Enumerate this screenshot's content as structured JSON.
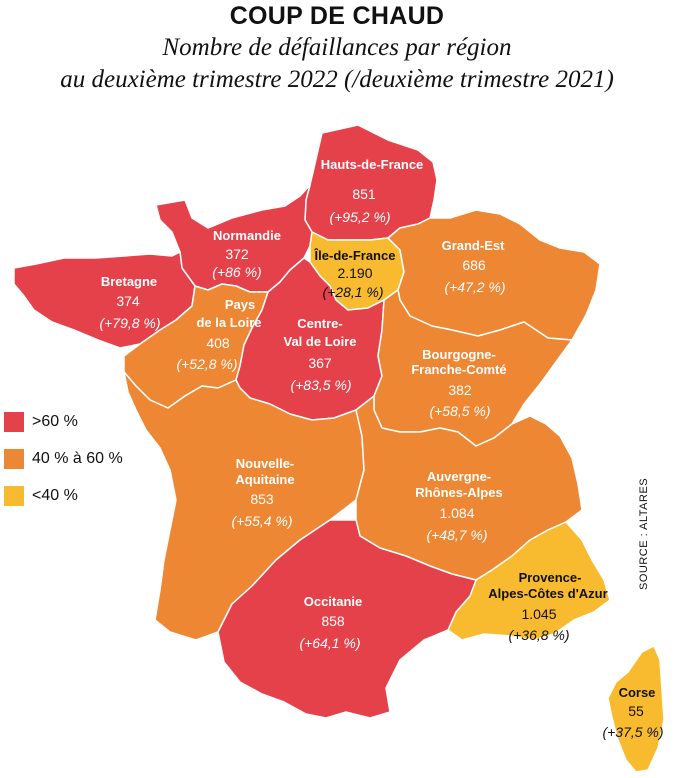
{
  "title": "COUP DE CHAUD",
  "subtitle_line1": "Nombre de défaillances par région",
  "subtitle_line2": "au deuxième trimestre 2022 (/deuxième trimestre 2021)",
  "colors": {
    "high": "#e5414b",
    "mid": "#ee8733",
    "low": "#f8bb2f",
    "border": "#ffffff"
  },
  "legend": [
    {
      "label": ">60 %",
      "color": "#e5414b"
    },
    {
      "label": "40 % à 60 %",
      "color": "#ee8733"
    },
    {
      "label": "<40 %",
      "color": "#f8bb2f"
    }
  ],
  "source": "SOURCE : ALTARES",
  "regions": {
    "hauts_de_france": {
      "name": "Hauts-de-France",
      "value": "851",
      "change": "(+95,2 %)"
    },
    "normandie": {
      "name": "Normandie",
      "value": "372",
      "change": "(+86 %)"
    },
    "ile_de_france": {
      "name": "Île-de-France",
      "value": "2.190",
      "change": "(+28,1 %)"
    },
    "grand_est": {
      "name": "Grand-Est",
      "value": "686",
      "change": "(+47,2 %)"
    },
    "bretagne": {
      "name": "Bretagne",
      "value": "374",
      "change": "(+79,8 %)"
    },
    "pays_de_la_loire": {
      "name_line1": "Pays",
      "name_line2": "de la Loire",
      "value": "408",
      "change": "(+52,8 %)"
    },
    "centre_val_de_loire": {
      "name_line1": "Centre-",
      "name_line2": "Val de Loire",
      "value": "367",
      "change": "(+83,5 %)"
    },
    "bourgogne_franche_comte": {
      "name_line1": "Bourgogne-",
      "name_line2": "Franche-Comté",
      "value": "382",
      "change": "(+58,5 %)"
    },
    "nouvelle_aquitaine": {
      "name_line1": "Nouvelle-",
      "name_line2": "Aquitaine",
      "value": "853",
      "change": "(+55,4 %)"
    },
    "auvergne_rhone_alpes": {
      "name_line1": "Auvergne-",
      "name_line2": "Rhônes-Alpes",
      "value": "1.084",
      "change": "(+48,7 %)"
    },
    "provence_alpes_cote_dazur": {
      "name_line1": "Provence-",
      "name_line2": "Alpes-Côtes d'Azur",
      "value": "1.045",
      "change": "(+36,8 %)"
    },
    "occitanie": {
      "name": "Occitanie",
      "value": "858",
      "change": "(+64,1 %)"
    },
    "corse": {
      "name": "Corse",
      "value": "55",
      "change": "(+37,5 %)"
    }
  }
}
